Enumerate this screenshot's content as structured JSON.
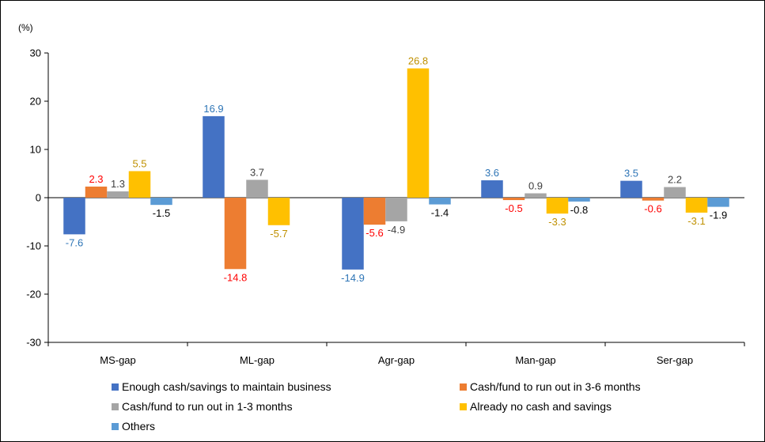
{
  "chart_data": {
    "type": "bar",
    "unit_label": "(%)",
    "categories": [
      "MS-gap",
      "ML-gap",
      "Agr-gap",
      "Man-gap",
      "Ser-gap"
    ],
    "ylim": [
      -30,
      30
    ],
    "yticks": [
      30,
      20,
      10,
      0,
      -10,
      -20,
      -30
    ],
    "grid": false,
    "legend_position": "bottom",
    "series": [
      {
        "name": "Enough cash/savings to maintain business",
        "color": "#4472C4",
        "label_color": "#2E75B6",
        "values": [
          -7.6,
          16.9,
          -14.9,
          3.6,
          3.5
        ]
      },
      {
        "name": "Cash/fund to run out in 3-6 months",
        "color": "#ED7D31",
        "label_color": "#FF0000",
        "values": [
          2.3,
          -14.8,
          -5.6,
          -0.5,
          -0.6
        ]
      },
      {
        "name": "Cash/fund to run out in 1-3 months",
        "color": "#A5A5A5",
        "label_color": "#404040",
        "values": [
          1.3,
          3.7,
          -4.9,
          0.9,
          2.2
        ]
      },
      {
        "name": "Already no cash and savings",
        "color": "#FFC000",
        "label_color": "#BF9000",
        "values": [
          5.5,
          -5.7,
          26.8,
          -3.3,
          -3.1
        ]
      },
      {
        "name": "Others",
        "color": "#5B9BD5",
        "label_color": "#000000",
        "values": [
          -1.5,
          null,
          -1.4,
          -0.8,
          -1.9
        ]
      }
    ]
  }
}
